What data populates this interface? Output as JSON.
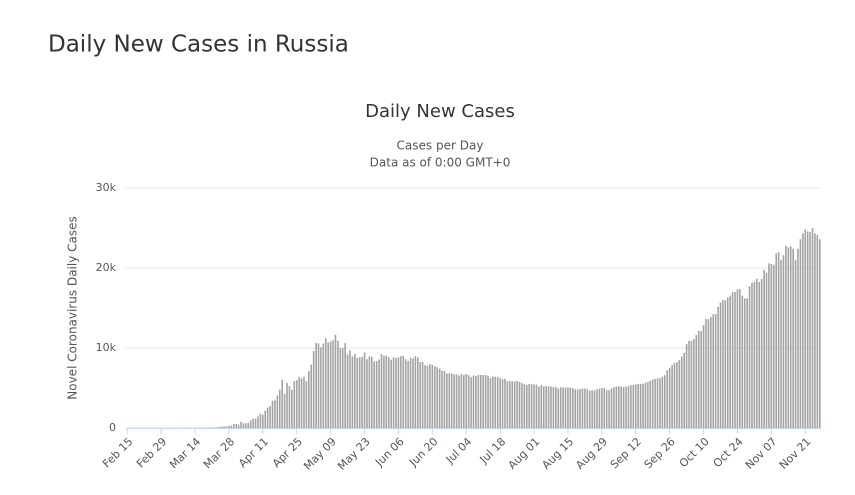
{
  "page_title": "Daily New Cases in Russia",
  "chart_data": {
    "type": "bar",
    "title": "Daily New Cases",
    "subtitle": [
      "Cases per Day",
      "Data as of 0:00 GMT+0"
    ],
    "y_label": "Novel Coronavirus Daily Cases",
    "color": "#a3a3a3",
    "grid": true,
    "ylim": [
      0,
      30000
    ],
    "yticks": [
      0,
      {
        "value": 10000,
        "label": "10k"
      },
      {
        "value": 20000,
        "label": "20k"
      },
      {
        "value": 30000,
        "label": "30k"
      }
    ],
    "categories": [
      "Feb 15",
      null,
      null,
      null,
      null,
      null,
      null,
      null,
      null,
      null,
      null,
      null,
      null,
      null,
      "Feb 29",
      null,
      null,
      null,
      null,
      null,
      null,
      null,
      null,
      null,
      null,
      null,
      null,
      null,
      "Mar 14",
      null,
      null,
      null,
      null,
      null,
      null,
      null,
      null,
      null,
      null,
      null,
      null,
      null,
      "Mar 28",
      null,
      null,
      null,
      null,
      null,
      null,
      null,
      null,
      null,
      null,
      null,
      null,
      null,
      "Apr 11",
      null,
      null,
      null,
      null,
      null,
      null,
      null,
      null,
      null,
      null,
      null,
      null,
      null,
      "Apr 25",
      null,
      null,
      null,
      null,
      null,
      null,
      null,
      null,
      null,
      null,
      null,
      null,
      null,
      "May 09",
      null,
      null,
      null,
      null,
      null,
      null,
      null,
      null,
      null,
      null,
      null,
      null,
      null,
      "May 23",
      null,
      null,
      null,
      null,
      null,
      null,
      null,
      null,
      null,
      null,
      null,
      null,
      null,
      "Jun 06",
      null,
      null,
      null,
      null,
      null,
      null,
      null,
      null,
      null,
      null,
      null,
      null,
      null,
      "Jun 20",
      null,
      null,
      null,
      null,
      null,
      null,
      null,
      null,
      null,
      null,
      null,
      null,
      null,
      "Jul 04",
      null,
      null,
      null,
      null,
      null,
      null,
      null,
      null,
      null,
      null,
      null,
      null,
      null,
      "Jul 18",
      null,
      null,
      null,
      null,
      null,
      null,
      null,
      null,
      null,
      null,
      null,
      null,
      null,
      "Aug 01",
      null,
      null,
      null,
      null,
      null,
      null,
      null,
      null,
      null,
      null,
      null,
      null,
      null,
      "Aug 15",
      null,
      null,
      null,
      null,
      null,
      null,
      null,
      null,
      null,
      null,
      null,
      null,
      null,
      "Aug 29",
      null,
      null,
      null,
      null,
      null,
      null,
      null,
      null,
      null,
      null,
      null,
      null,
      null,
      "Sep 12",
      null,
      null,
      null,
      null,
      null,
      null,
      null,
      null,
      null,
      null,
      null,
      null,
      null,
      "Sep 26",
      null,
      null,
      null,
      null,
      null,
      null,
      null,
      null,
      null,
      null,
      null,
      null,
      null,
      "Oct 10",
      null,
      null,
      null,
      null,
      null,
      null,
      null,
      null,
      null,
      null,
      null,
      null,
      null,
      "Oct 24",
      null,
      null,
      null,
      null,
      null,
      null,
      null,
      null,
      null,
      null,
      null,
      null,
      null,
      "Nov 07",
      null,
      null,
      null,
      null,
      null,
      null,
      null,
      null,
      null,
      null,
      null,
      null,
      null,
      "Nov 21",
      null,
      null,
      null,
      null,
      null,
      null
    ],
    "values": [
      0,
      0,
      0,
      0,
      0,
      0,
      0,
      0,
      0,
      0,
      0,
      0,
      0,
      0,
      0,
      0,
      1,
      0,
      0,
      0,
      0,
      3,
      0,
      3,
      7,
      8,
      6,
      6,
      11,
      34,
      30,
      30,
      21,
      52,
      54,
      53,
      71,
      57,
      163,
      182,
      196,
      228,
      270,
      302,
      500,
      501,
      440,
      771,
      601,
      582,
      658,
      954,
      1154,
      1175,
      1459,
      1786,
      1667,
      2186,
      2558,
      2774,
      3388,
      3448,
      4070,
      4785,
      6060,
      4268,
      5642,
      5236,
      4774,
      5849,
      5966,
      6361,
      6198,
      6411,
      5841,
      7099,
      7933,
      9623,
      10633,
      10581,
      10102,
      10559,
      11231,
      10699,
      10817,
      11012,
      11656,
      10899,
      10028,
      9974,
      10598,
      9200,
      9709,
      8926,
      9263,
      8764,
      8849,
      8894,
      9434,
      8599,
      8946,
      8915,
      8338,
      8371,
      8572,
      9268,
      9035,
      9035,
      8863,
      8536,
      8831,
      8726,
      8855,
      8984,
      8985,
      8595,
      8404,
      8779,
      8706,
      8987,
      8835,
      8246,
      8248,
      7843,
      7790,
      7972,
      7889,
      7728,
      7600,
      7425,
      7176,
      7113,
      6800,
      6852,
      6791,
      6693,
      6719,
      6556,
      6760,
      6632,
      6736,
      6611,
      6368,
      6562,
      6509,
      6635,
      6632,
      6611,
      6615,
      6537,
      6248,
      6422,
      6428,
      6406,
      6234,
      6109,
      6170,
      5842,
      5862,
      5848,
      5811,
      5871,
      5765,
      5635,
      5475,
      5395,
      5509,
      5482,
      5462,
      5427,
      5159,
      5394,
      5204,
      5241,
      5212,
      5189,
      5118,
      5102,
      4945,
      5102,
      5058,
      5065,
      5061,
      5040,
      4969,
      4839,
      4828,
      4870,
      4921,
      4941,
      4852,
      4676,
      4696,
      4711,
      4829,
      4921,
      4980,
      4993,
      4729,
      4729,
      4952,
      5110,
      5185,
      5205,
      5195,
      5099,
      5185,
      5218,
      5363,
      5406,
      5449,
      5504,
      5509,
      5529,
      5670,
      5762,
      5905,
      6065,
      6148,
      6196,
      6215,
      6431,
      6595,
      7212,
      7523,
      7867,
      8135,
      8232,
      8481,
      8945,
      9412,
      10499,
      10888,
      10888,
      11115,
      11615,
      12126,
      12126,
      12846,
      13634,
      13592,
      13868,
      14231,
      14231,
      15150,
      15700,
      15982,
      15982,
      16319,
      16550,
      17000,
      17000,
      17340,
      17340,
      16521,
      16202,
      16202,
      17717,
      18140,
      18283,
      18665,
      18257,
      18648,
      19768,
      19404,
      20582,
      20498,
      20396,
      21798,
      21983,
      20977,
      21608,
      22778,
      22572,
      22702,
      22410,
      20985,
      22410,
      23610,
      24318,
      24822,
      24581,
      24500,
      25000,
      24326,
      24150,
      23600
    ]
  }
}
